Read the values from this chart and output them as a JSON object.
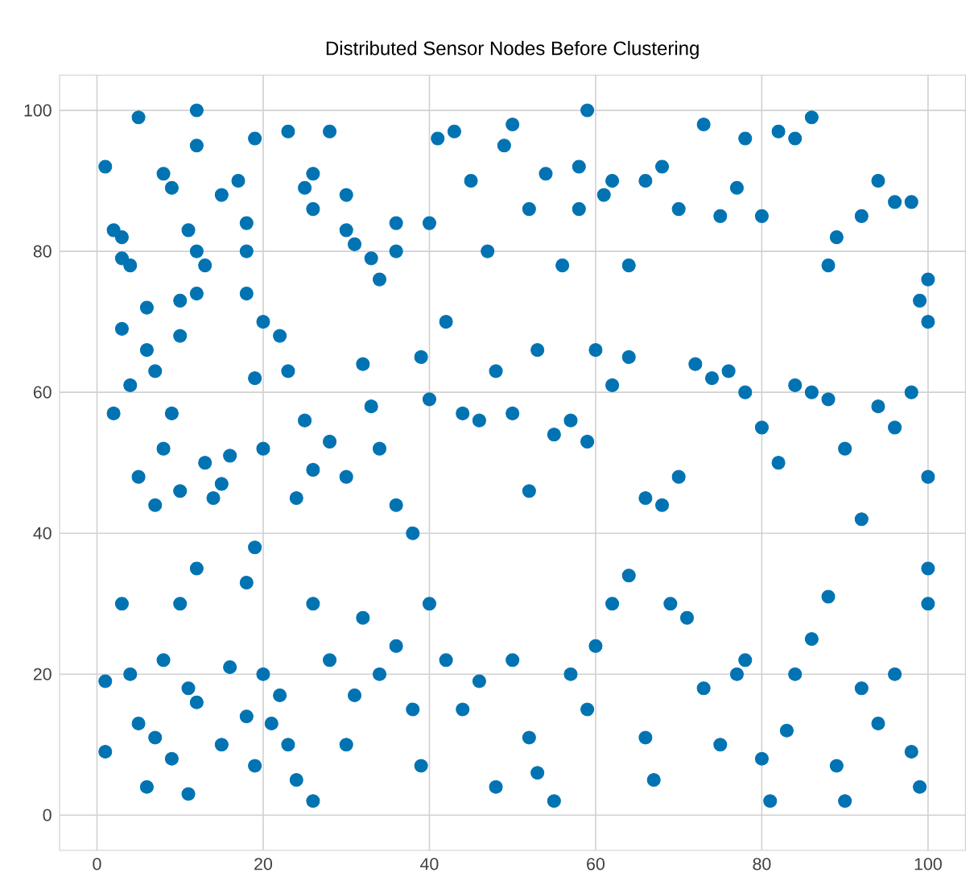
{
  "chart_data": {
    "type": "scatter",
    "title": "Distributed Sensor Nodes Before Clustering",
    "xlim": [
      -4.5,
      104.5
    ],
    "ylim": [
      -5,
      105
    ],
    "xticks": [
      0,
      20,
      40,
      60,
      80,
      100
    ],
    "yticks": [
      0,
      20,
      40,
      60,
      80,
      100
    ],
    "grid": true,
    "marker": "circle",
    "series": [
      {
        "color": "#0173b2",
        "x": [
          1,
          2,
          3,
          3,
          4,
          3,
          5,
          6,
          6,
          7,
          8,
          9,
          10,
          10,
          11,
          12,
          12,
          12,
          13,
          12,
          15,
          17,
          18,
          18,
          18,
          19,
          19,
          20,
          23,
          25,
          26,
          26,
          28,
          30,
          30,
          31,
          33,
          34,
          36,
          36,
          40,
          41,
          43,
          45,
          47,
          49,
          50,
          52,
          54,
          56,
          58,
          58,
          59,
          61,
          62,
          64,
          66,
          68,
          70,
          73,
          75,
          77,
          78,
          80,
          82,
          84,
          86,
          88,
          89,
          92,
          94,
          96,
          98,
          99,
          100,
          2,
          4,
          5,
          7,
          8,
          9,
          10,
          10,
          12,
          13,
          14,
          15,
          16,
          18,
          19,
          20,
          22,
          23,
          24,
          25,
          26,
          28,
          30,
          32,
          33,
          34,
          36,
          38,
          39,
          40,
          42,
          44,
          46,
          48,
          50,
          52,
          53,
          55,
          57,
          59,
          60,
          62,
          64,
          66,
          68,
          70,
          72,
          74,
          76,
          78,
          80,
          82,
          84,
          86,
          88,
          90,
          92,
          94,
          96,
          98,
          100,
          100,
          100,
          1,
          1,
          3,
          4,
          5,
          6,
          7,
          8,
          9,
          11,
          11,
          12,
          15,
          16,
          18,
          19,
          20,
          21,
          22,
          23,
          24,
          26,
          26,
          28,
          30,
          31,
          32,
          34,
          36,
          38,
          39,
          40,
          42,
          44,
          46,
          48,
          50,
          52,
          53,
          55,
          57,
          59,
          60,
          62,
          64,
          66,
          67,
          69,
          71,
          73,
          75,
          77,
          78,
          80,
          81,
          83,
          84,
          86,
          88,
          89,
          90,
          92,
          94,
          96,
          98,
          99,
          100
        ],
        "values": [
          92,
          83,
          82,
          79,
          78,
          69,
          99,
          72,
          66,
          63,
          91,
          89,
          73,
          68,
          83,
          80,
          95,
          100,
          78,
          74,
          88,
          90,
          84,
          80,
          74,
          96,
          62,
          70,
          97,
          89,
          91,
          86,
          97,
          88,
          83,
          81,
          79,
          76,
          84,
          80,
          84,
          96,
          97,
          90,
          80,
          95,
          98,
          86,
          91,
          78,
          92,
          86,
          100,
          88,
          90,
          78,
          90,
          92,
          86,
          98,
          85,
          89,
          96,
          85,
          97,
          96,
          99,
          78,
          82,
          85,
          90,
          87,
          87,
          73,
          76,
          57,
          61,
          48,
          44,
          52,
          57,
          46,
          30,
          35,
          50,
          45,
          47,
          51,
          33,
          38,
          52,
          68,
          63,
          45,
          56,
          49,
          53,
          48,
          64,
          58,
          52,
          44,
          40,
          65,
          59,
          70,
          57,
          56,
          63,
          57,
          46,
          66,
          54,
          56,
          53,
          66,
          61,
          65,
          45,
          44,
          48,
          64,
          62,
          63,
          60,
          55,
          50,
          61,
          60,
          59,
          52,
          42,
          58,
          55,
          60,
          70,
          48,
          35,
          19,
          9,
          30,
          20,
          13,
          4,
          11,
          22,
          8,
          3,
          18,
          16,
          10,
          21,
          14,
          7,
          20,
          13,
          17,
          10,
          5,
          2,
          30,
          22,
          10,
          17,
          28,
          20,
          24,
          15,
          7,
          30,
          22,
          15,
          19,
          4,
          22,
          11,
          6,
          2,
          20,
          15,
          24,
          30,
          34,
          11,
          5,
          30,
          28,
          18,
          10,
          20,
          22,
          8,
          2,
          12,
          20,
          25,
          31,
          7,
          2,
          18,
          13,
          20,
          9,
          4,
          30
        ]
      }
    ]
  }
}
